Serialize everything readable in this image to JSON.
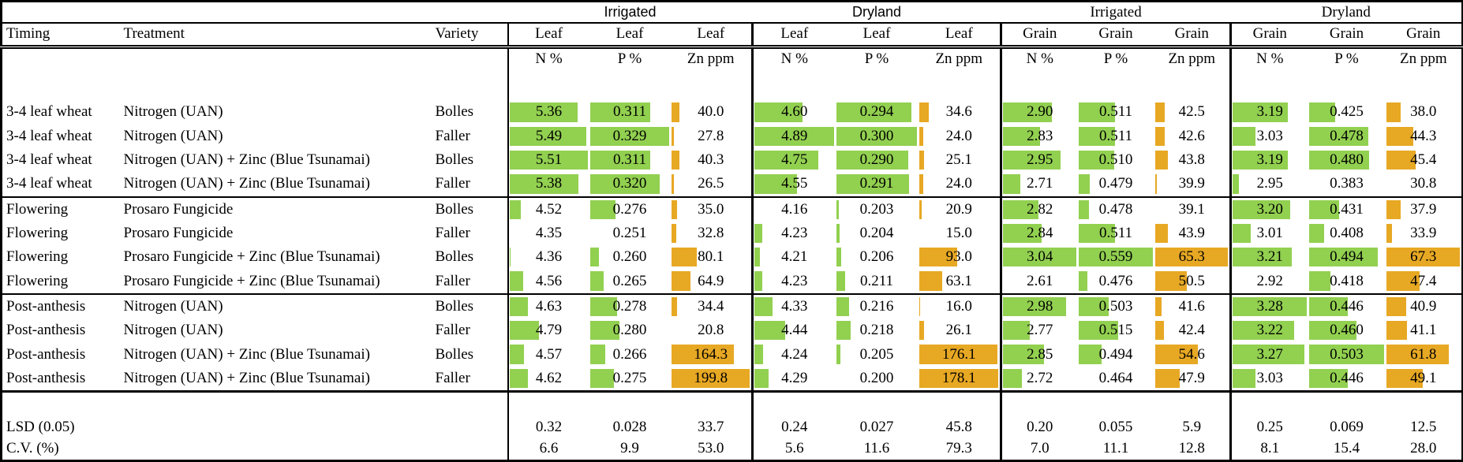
{
  "table": {
    "label_headers": [
      "Timing",
      "Treatment",
      "Variety"
    ],
    "group_headers": [
      {
        "label": "Irrigated",
        "span": 3,
        "font": "sans"
      },
      {
        "label": "Dryland",
        "span": 3,
        "font": "sans"
      },
      {
        "label": "Irrigated",
        "span": 3,
        "font": "serif"
      },
      {
        "label": "Dryland",
        "span": 3,
        "font": "serif"
      }
    ],
    "columns": [
      {
        "group": "Irrigated",
        "tissue": "Leaf",
        "measure": "N %",
        "bar": "green"
      },
      {
        "group": "Irrigated",
        "tissue": "Leaf",
        "measure": "P %",
        "bar": "green"
      },
      {
        "group": "Irrigated",
        "tissue": "Leaf",
        "measure": "Zn ppm",
        "bar": "gold"
      },
      {
        "group": "Dryland",
        "tissue": "Leaf",
        "measure": "N %",
        "bar": "green"
      },
      {
        "group": "Dryland",
        "tissue": "Leaf",
        "measure": "P %",
        "bar": "green"
      },
      {
        "group": "Dryland",
        "tissue": "Leaf",
        "measure": "Zn ppm",
        "bar": "gold"
      },
      {
        "group": "Irrigated",
        "tissue": "Grain",
        "measure": "N %",
        "bar": "green"
      },
      {
        "group": "Irrigated",
        "tissue": "Grain",
        "measure": "P %",
        "bar": "green"
      },
      {
        "group": "Irrigated",
        "tissue": "Grain",
        "measure": "Zn ppm",
        "bar": "gold"
      },
      {
        "group": "Dryland",
        "tissue": "Grain",
        "measure": "N %",
        "bar": "green"
      },
      {
        "group": "Dryland",
        "tissue": "Grain",
        "measure": "P %",
        "bar": "green"
      },
      {
        "group": "Dryland",
        "tissue": "Grain",
        "measure": "Zn ppm",
        "bar": "gold"
      }
    ],
    "rows": [
      {
        "timing": "3-4 leaf wheat",
        "treatment": "Nitrogen (UAN)",
        "variety": "Bolles",
        "values": [
          "5.36",
          "0.311",
          "40.0",
          "4.60",
          "0.294",
          "34.6",
          "2.90",
          "0.511",
          "42.5",
          "3.19",
          "0.425",
          "38.0"
        ]
      },
      {
        "timing": "3-4 leaf wheat",
        "treatment": "Nitrogen (UAN)",
        "variety": "Faller",
        "values": [
          "5.49",
          "0.329",
          "27.8",
          "4.89",
          "0.300",
          "24.0",
          "2.83",
          "0.511",
          "42.6",
          "3.03",
          "0.478",
          "44.3"
        ]
      },
      {
        "timing": "3-4 leaf wheat",
        "treatment": "Nitrogen (UAN) + Zinc (Blue Tsunamai)",
        "variety": "Bolles",
        "values": [
          "5.51",
          "0.311",
          "40.3",
          "4.75",
          "0.290",
          "25.1",
          "2.95",
          "0.510",
          "43.8",
          "3.19",
          "0.480",
          "45.4"
        ]
      },
      {
        "timing": "3-4 leaf wheat",
        "treatment": "Nitrogen (UAN) + Zinc (Blue Tsunamai)",
        "variety": "Faller",
        "values": [
          "5.38",
          "0.320",
          "26.5",
          "4.55",
          "0.291",
          "24.0",
          "2.71",
          "0.479",
          "39.9",
          "2.95",
          "0.383",
          "30.8"
        ]
      },
      {
        "timing": "Flowering",
        "treatment": "Prosaro Fungicide",
        "variety": "Bolles",
        "values": [
          "4.52",
          "0.276",
          "35.0",
          "4.16",
          "0.203",
          "20.9",
          "2.82",
          "0.478",
          "39.1",
          "3.20",
          "0.431",
          "37.9"
        ]
      },
      {
        "timing": "Flowering",
        "treatment": "Prosaro Fungicide",
        "variety": "Faller",
        "values": [
          "4.35",
          "0.251",
          "32.8",
          "4.23",
          "0.204",
          "15.0",
          "2.84",
          "0.511",
          "43.9",
          "3.01",
          "0.408",
          "33.9"
        ]
      },
      {
        "timing": "Flowering",
        "treatment": "Prosaro Fungicide + Zinc (Blue Tsunamai)",
        "variety": "Bolles",
        "values": [
          "4.36",
          "0.260",
          "80.1",
          "4.21",
          "0.206",
          "93.0",
          "3.04",
          "0.559",
          "65.3",
          "3.21",
          "0.494",
          "67.3"
        ]
      },
      {
        "timing": "Flowering",
        "treatment": "Prosaro Fungicide + Zinc (Blue Tsunamai)",
        "variety": "Faller",
        "values": [
          "4.56",
          "0.265",
          "64.9",
          "4.23",
          "0.211",
          "63.1",
          "2.61",
          "0.476",
          "50.5",
          "2.92",
          "0.418",
          "47.4"
        ]
      },
      {
        "timing": "Post-anthesis",
        "treatment": "Nitrogen (UAN)",
        "variety": "Bolles",
        "values": [
          "4.63",
          "0.278",
          "34.4",
          "4.33",
          "0.216",
          "16.0",
          "2.98",
          "0.503",
          "41.6",
          "3.28",
          "0.446",
          "40.9"
        ]
      },
      {
        "timing": "Post-anthesis",
        "treatment": "Nitrogen (UAN)",
        "variety": "Faller",
        "values": [
          "4.79",
          "0.280",
          "20.8",
          "4.44",
          "0.218",
          "26.1",
          "2.77",
          "0.515",
          "42.4",
          "3.22",
          "0.460",
          "41.1"
        ]
      },
      {
        "timing": "Post-anthesis",
        "treatment": "Nitrogen (UAN) + Zinc (Blue Tsunamai)",
        "variety": "Bolles",
        "values": [
          "4.57",
          "0.266",
          "164.3",
          "4.24",
          "0.205",
          "176.1",
          "2.85",
          "0.494",
          "54.6",
          "3.27",
          "0.503",
          "61.8"
        ]
      },
      {
        "timing": "Post-anthesis",
        "treatment": "Nitrogen (UAN) + Zinc (Blue Tsunamai)",
        "variety": "Faller",
        "values": [
          "4.62",
          "0.275",
          "199.8",
          "4.29",
          "0.200",
          "178.1",
          "2.72",
          "0.464",
          "47.9",
          "3.03",
          "0.446",
          "49.1"
        ]
      }
    ],
    "footer_rows": [
      {
        "label": "LSD (0.05)",
        "values": [
          "0.32",
          "0.028",
          "33.7",
          "0.24",
          "0.027",
          "45.8",
          "0.20",
          "0.055",
          "5.9",
          "0.25",
          "0.069",
          "12.5"
        ]
      },
      {
        "label": "C.V. (%)",
        "values": [
          "6.6",
          "9.9",
          "53.0",
          "5.6",
          "11.6",
          "79.3",
          "7.0",
          "11.1",
          "12.8",
          "8.1",
          "15.4",
          "28.0"
        ]
      }
    ],
    "colors": {
      "green": "#92d050",
      "gold": "#e7a824"
    }
  }
}
